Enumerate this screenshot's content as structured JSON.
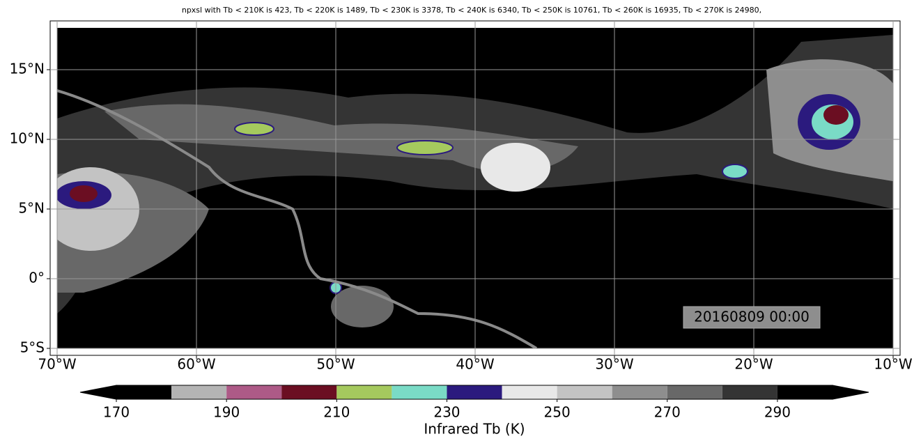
{
  "title": "npxsl with Tb < 210K is 423,  Tb < 220K is 1489,  Tb < 230K is 3378,  Tb < 240K is 6340,  Tb < 250K is 10761,  Tb < 260K is 16935,  Tb < 270K is 24980,",
  "map": {
    "xlim": [
      -70.5,
      -9.5
    ],
    "ylim": [
      -5.5,
      18.5
    ],
    "xticks": [
      {
        "value": -70,
        "label": "70°W"
      },
      {
        "value": -60,
        "label": "60°W"
      },
      {
        "value": -50,
        "label": "50°W"
      },
      {
        "value": -40,
        "label": "40°W"
      },
      {
        "value": -30,
        "label": "30°W"
      },
      {
        "value": -20,
        "label": "20°W"
      },
      {
        "value": -10,
        "label": "10°W"
      }
    ],
    "yticks": [
      {
        "value": -5,
        "label": "5°S"
      },
      {
        "value": 0,
        "label": "0°"
      },
      {
        "value": 5,
        "label": "5°N"
      },
      {
        "value": 10,
        "label": "10°N"
      },
      {
        "value": 15,
        "label": "15°N"
      }
    ],
    "grid": true
  },
  "timestamp": "20160809 00:00",
  "colorbar": {
    "label": "Infrared Tb (K)",
    "bounds": [
      170,
      180,
      190,
      200,
      210,
      220,
      230,
      240,
      250,
      260,
      270,
      280,
      290,
      300
    ],
    "colors": [
      "#000000",
      "#b4b4b4",
      "#ad5a87",
      "#6b0e22",
      "#a5c95e",
      "#7adbc6",
      "#2b1a7e",
      "#e8e8e8",
      "#c3c3c3",
      "#8e8e8e",
      "#686868",
      "#343434",
      "#000000"
    ],
    "ticks": [
      170,
      190,
      210,
      230,
      250,
      270,
      290
    ]
  }
}
